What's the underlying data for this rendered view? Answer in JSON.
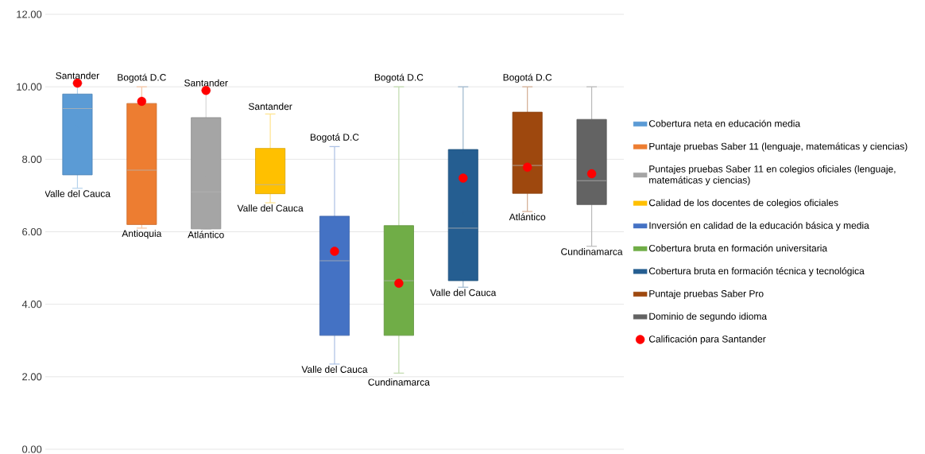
{
  "chart_data": {
    "type": "box",
    "categories": [
      null,
      null,
      null,
      null,
      null,
      null,
      null,
      null,
      null
    ],
    "ylim": [
      0,
      12
    ],
    "yticks": [
      {
        "value": 0,
        "label": "0.00"
      },
      {
        "value": 2,
        "label": "2.00"
      },
      {
        "value": 4,
        "label": "4.00"
      },
      {
        "value": 6,
        "label": "6.00"
      },
      {
        "value": 8,
        "label": "8.00"
      },
      {
        "value": 10,
        "label": "10.00"
      },
      {
        "value": 12,
        "label": "12.00"
      }
    ],
    "grid": "y",
    "legend": "right",
    "tick_labels": "y",
    "series": [
      {
        "name": "Cobertura neta en educación media",
        "color": "#5b9bd5",
        "boxes": [
          {
            "low": 7.2,
            "q1": 7.57,
            "median": 9.4,
            "q3": 9.8,
            "high": 10.1,
            "mean": 8.9
          },
          null,
          null,
          null,
          null,
          null,
          null,
          null,
          null
        ]
      },
      {
        "name": "Puntaje pruebas Saber 11 (lenguaje, matemáticas y ciencias)",
        "color": "#ed7d31",
        "boxes": [
          null,
          {
            "low": 6.1,
            "q1": 6.2,
            "median": 7.7,
            "q3": 9.54,
            "high": 10.0,
            "mean": 7.85
          },
          null,
          null,
          null,
          null,
          null,
          null,
          null
        ]
      },
      {
        "name": "Puntajes pruebas Saber 11 en colegios oficiales (lenguaje, matemáticas y ciencias)",
        "color": "#a5a5a5",
        "boxes": [
          null,
          null,
          {
            "low": 6.07,
            "q1": 6.08,
            "median": 7.1,
            "q3": 9.15,
            "high": 9.9,
            "mean": 7.55
          },
          null,
          null,
          null,
          null,
          null,
          null
        ]
      },
      {
        "name": "Calidad de los docentes de colegios oficiales",
        "color": "#ffc000",
        "boxes": [
          null,
          null,
          null,
          {
            "low": 6.8,
            "q1": 7.05,
            "median": 7.3,
            "q3": 8.3,
            "high": 9.25,
            "mean": 7.65
          },
          null,
          null,
          null,
          null,
          null
        ]
      },
      {
        "name": "Inversión en calidad de la educación básica y media",
        "color": "#4472c4",
        "boxes": [
          null,
          null,
          null,
          null,
          {
            "low": 2.35,
            "q1": 3.14,
            "median": 5.2,
            "q3": 6.43,
            "high": 8.35,
            "mean": 5.0
          },
          null,
          null,
          null,
          null
        ]
      },
      {
        "name": "Cobertura bruta en formación universitaria",
        "color": "#70ad47",
        "boxes": [
          null,
          null,
          null,
          null,
          null,
          {
            "low": 2.1,
            "q1": 3.14,
            "median": 4.65,
            "q3": 6.17,
            "high": 10.0,
            "mean": 4.95
          },
          null,
          null,
          null
        ]
      },
      {
        "name": "Cobertura bruta en formación técnica y tecnológica",
        "color": "#255e91",
        "boxes": [
          null,
          null,
          null,
          null,
          null,
          null,
          {
            "low": 4.47,
            "q1": 4.65,
            "median": 6.1,
            "q3": 8.27,
            "high": 10.0,
            "mean": 6.5
          },
          null,
          null
        ]
      },
      {
        "name": "Puntaje pruebas Saber Pro",
        "color": "#9e480e",
        "boxes": [
          null,
          null,
          null,
          null,
          null,
          null,
          null,
          {
            "low": 6.56,
            "q1": 7.06,
            "median": 7.83,
            "q3": 9.3,
            "high": 10.0,
            "mean": 8.1
          },
          null
        ]
      },
      {
        "name": "Dominio de segundo idioma",
        "color": "#636363",
        "boxes": [
          null,
          null,
          null,
          null,
          null,
          null,
          null,
          null,
          {
            "low": 5.6,
            "q1": 6.75,
            "median": 7.41,
            "q3": 9.1,
            "high": 10.0,
            "mean": 7.7
          }
        ]
      },
      {
        "name": "Calificación para Santander",
        "type": "scatter",
        "marker": "circle",
        "color": "#ff0000",
        "values": [
          10.1,
          9.6,
          9.9,
          null,
          5.46,
          4.58,
          7.48,
          7.78,
          7.6
        ]
      }
    ],
    "annotations": [
      {
        "text": "Santander",
        "y": 10.1
      },
      {
        "text": "Valle del Cauca",
        "y": 7.2
      },
      {
        "text": "Bogotá D.C",
        "y": 10.0
      },
      {
        "text": "Antioquia",
        "y": 6.1
      },
      {
        "text": "Santander",
        "y": 9.9
      },
      {
        "text": "Atlántico",
        "y": 6.07
      },
      {
        "text": "Santander",
        "y": 9.25
      },
      {
        "text": "Valle del Cauca",
        "y": 6.8
      },
      {
        "text": "Bogotá D.C",
        "y": 8.35
      },
      {
        "text": "Valle del Cauca",
        "y": 2.35
      },
      {
        "text": "Bogotá D.C",
        "y": 10.0
      },
      {
        "text": "Cundinamarca",
        "y": 2.1
      },
      {
        "text": "Valle del Cauca",
        "y": 4.47
      },
      {
        "text": "Atlántico",
        "y": 6.56
      },
      {
        "text": "Bogotá D.C",
        "y": 10.0
      },
      {
        "text": "Cundinamarca",
        "y": 5.6
      }
    ]
  }
}
